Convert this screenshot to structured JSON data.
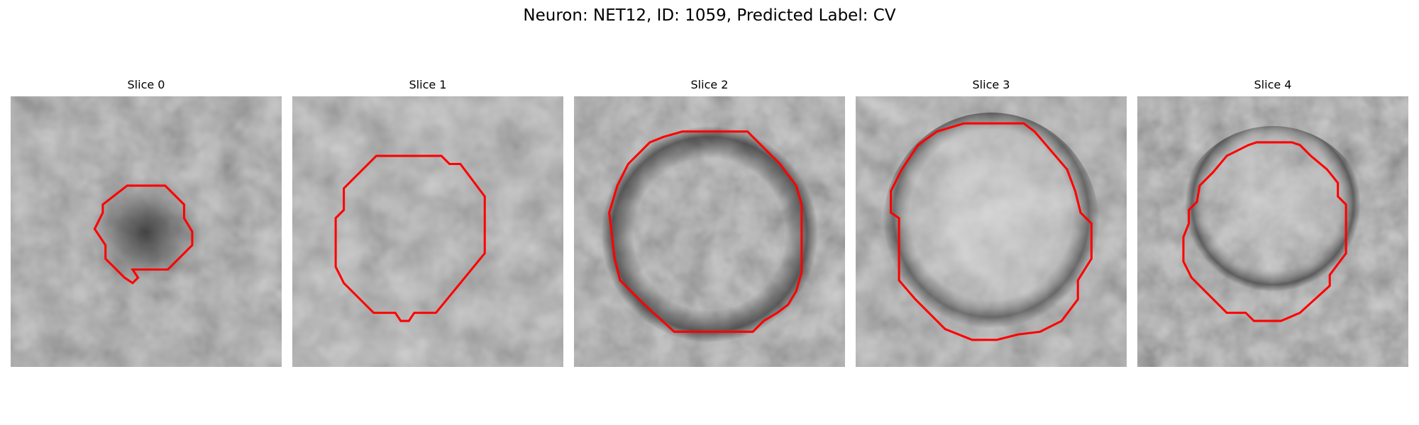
{
  "figure": {
    "title": "Neuron: NET12, ID: 1059, Predicted Label: CV"
  },
  "panels": [
    {
      "title": "Slice 0"
    },
    {
      "title": "Slice 1"
    },
    {
      "title": "Slice 2"
    },
    {
      "title": "Slice 3"
    },
    {
      "title": "Slice 4"
    }
  ],
  "style": {
    "contour_color": "#ff0000",
    "colormap": "grayscale"
  }
}
